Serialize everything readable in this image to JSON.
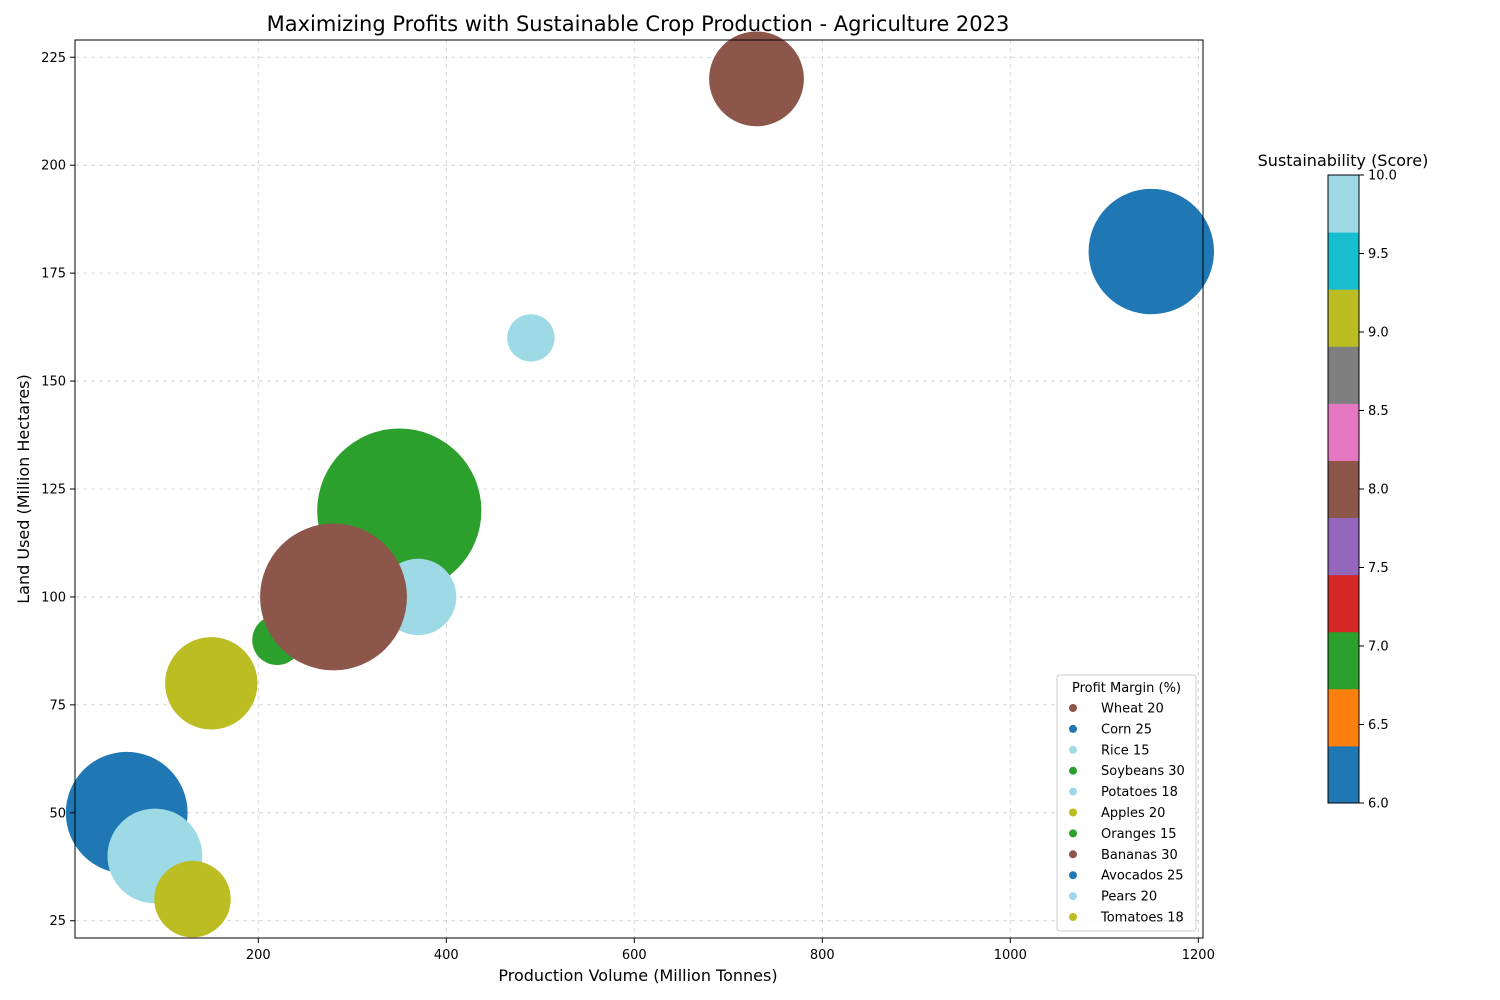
{
  "chart_data": {
    "type": "scatter",
    "title": "Maximizing Profits with Sustainable Crop Production - Agriculture 2023",
    "xlabel": "Production Volume (Million Tonnes)",
    "ylabel": "Land Used (Million Hectares)",
    "xlim": [
      5,
      1205
    ],
    "ylim": [
      21,
      229
    ],
    "x_ticks": [
      200,
      400,
      600,
      800,
      1000,
      1200
    ],
    "y_ticks": [
      25,
      50,
      75,
      100,
      125,
      150,
      175,
      200,
      225
    ],
    "grid": true,
    "legend_title": "Profit Margin (%)",
    "legend_position": "lower-right",
    "colorbar": {
      "title": "Sustainability (Score)",
      "range": [
        6,
        10
      ],
      "ticks": [
        "6.0",
        "6.5",
        "7.0",
        "7.5",
        "8.0",
        "8.5",
        "9.0",
        "9.5",
        "10.0"
      ],
      "colors": [
        "#1f77b4",
        "#ff7f0e",
        "#2ca02c",
        "#d62728",
        "#9467bd",
        "#8c564b",
        "#e377c2",
        "#7f7f7f",
        "#bcbd22",
        "#17becf",
        "#9edae5"
      ]
    },
    "series": [
      {
        "name": "Wheat 20",
        "x": 730,
        "y": 220,
        "size": 2000,
        "color": "#8c564b"
      },
      {
        "name": "Corn 25",
        "x": 1150,
        "y": 180,
        "size": 3500,
        "color": "#1f77b4"
      },
      {
        "name": "Rice 15",
        "x": 490,
        "y": 160,
        "size": 500,
        "color": "#9edae5"
      },
      {
        "name": "Soybeans 30",
        "x": 350,
        "y": 120,
        "size": 6000,
        "color": "#2ca02c"
      },
      {
        "name": "Potatoes 18",
        "x": 370,
        "y": 100,
        "size": 1300,
        "color": "#9edae5"
      },
      {
        "name": "Apples 20",
        "x": 150,
        "y": 80,
        "size": 1900,
        "color": "#bcbd22"
      },
      {
        "name": "Oranges 15",
        "x": 220,
        "y": 90,
        "size": 550,
        "color": "#2ca02c"
      },
      {
        "name": "Bananas 30",
        "x": 280,
        "y": 100,
        "size": 4800,
        "color": "#8c564b"
      },
      {
        "name": "Avocados 25",
        "x": 60,
        "y": 50,
        "size": 3300,
        "color": "#1f77b4"
      },
      {
        "name": "Pears 20",
        "x": 90,
        "y": 40,
        "size": 2000,
        "color": "#9edae5"
      },
      {
        "name": "Tomatoes 18",
        "x": 130,
        "y": 30,
        "size": 1300,
        "color": "#bcbd22"
      }
    ]
  }
}
